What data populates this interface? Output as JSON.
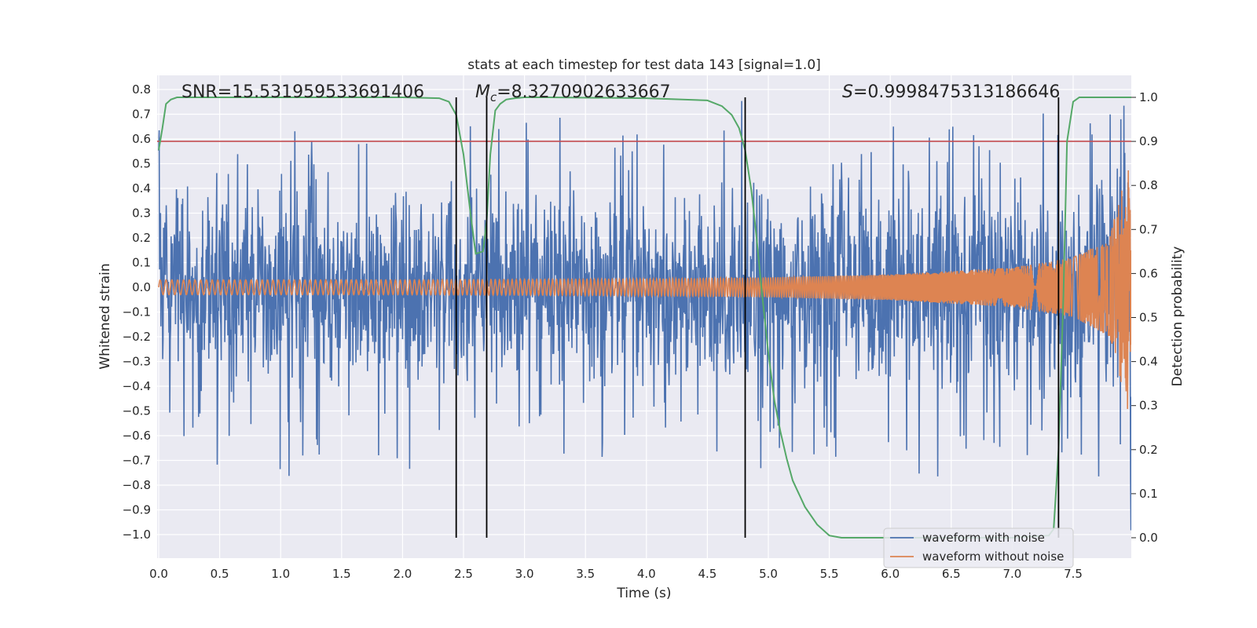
{
  "chart_data": {
    "type": "line",
    "title": "stats at each timestep for test data 143 [signal=1.0]",
    "xlabel": "Time (s)",
    "ylabel": "Whitened strain",
    "ylabel_right": "Detection probability",
    "xlim": [
      0.0,
      8.0
    ],
    "ylim": [
      -1.0,
      0.8
    ],
    "ylim_right": [
      0.0,
      1.0
    ],
    "x_ticks": [
      "0.0",
      "0.5",
      "1.0",
      "1.5",
      "2.0",
      "2.5",
      "3.0",
      "3.5",
      "4.0",
      "4.5",
      "5.0",
      "5.5",
      "6.0",
      "6.5",
      "7.0",
      "7.5"
    ],
    "y_ticks": [
      "0.8",
      "0.7",
      "0.6",
      "0.5",
      "0.4",
      "0.3",
      "0.2",
      "0.1",
      "0.0",
      "−0.1",
      "−0.2",
      "−0.3",
      "−0.4",
      "−0.5",
      "−0.6",
      "−0.7",
      "−0.8",
      "−0.9",
      "−1.0"
    ],
    "y_ticks_right": [
      "1.0",
      "0.9",
      "0.8",
      "0.7",
      "0.6",
      "0.5",
      "0.4",
      "0.3",
      "0.2",
      "0.1",
      "0.0"
    ],
    "annotations": {
      "snr_prefix": "SNR=",
      "snr_value": "15.531959533691406",
      "mc_symbol": "M",
      "mc_subscript": "c",
      "mc_value": "=8.3270902633667",
      "s_symbol": "S",
      "s_value": "=0.9998475313186646"
    },
    "threshold": {
      "value": 0.9,
      "axis": "right",
      "color": "#c44e52"
    },
    "vertical_lines": [
      2.44,
      2.69,
      4.81,
      7.38
    ],
    "series": [
      {
        "name": "waveform with noise",
        "color": "#4c72b0",
        "kind": "noise",
        "envelope": {
          "x": [
            0.0,
            2.0,
            4.0,
            6.0,
            7.0,
            7.5,
            7.8,
            8.0
          ],
          "max": [
            0.45,
            0.45,
            0.46,
            0.46,
            0.48,
            0.55,
            0.6,
            0.6
          ],
          "min": [
            -0.45,
            -0.45,
            -0.45,
            -0.46,
            -0.47,
            -0.5,
            -0.55,
            -0.6
          ]
        }
      },
      {
        "name": "waveform without noise",
        "color": "#dd8452",
        "kind": "chirp",
        "envelope": {
          "x": [
            0.0,
            2.0,
            4.0,
            5.0,
            6.0,
            7.0,
            7.5,
            7.8,
            7.95,
            8.0
          ],
          "amp": [
            0.03,
            0.03,
            0.034,
            0.04,
            0.052,
            0.08,
            0.12,
            0.2,
            0.5,
            0.0
          ]
        }
      },
      {
        "name": "",
        "color": "#55a868",
        "axis": "right",
        "x": [
          0.0,
          0.03,
          0.06,
          0.1,
          0.15,
          0.2,
          0.3,
          1.0,
          2.0,
          2.3,
          2.38,
          2.44,
          2.5,
          2.56,
          2.6,
          2.66,
          2.69,
          2.72,
          2.76,
          2.8,
          2.85,
          2.92,
          3.0,
          3.2,
          4.0,
          4.5,
          4.62,
          4.7,
          4.76,
          4.81,
          4.86,
          4.9,
          4.95,
          5.0,
          5.05,
          5.1,
          5.15,
          5.2,
          5.3,
          5.4,
          5.5,
          5.6,
          6.0,
          7.0,
          7.3,
          7.34,
          7.38,
          7.42,
          7.45,
          7.5,
          7.55,
          7.6,
          8.0
        ],
        "y": [
          0.88,
          0.93,
          0.985,
          0.995,
          1.0,
          1.0,
          1.0,
          1.0,
          1.0,
          0.998,
          0.99,
          0.96,
          0.87,
          0.73,
          0.645,
          0.65,
          0.72,
          0.87,
          0.97,
          0.985,
          0.995,
          0.998,
          1.0,
          1.0,
          0.998,
          0.993,
          0.98,
          0.96,
          0.93,
          0.88,
          0.79,
          0.69,
          0.55,
          0.42,
          0.31,
          0.24,
          0.18,
          0.13,
          0.07,
          0.03,
          0.005,
          0.0,
          0.0,
          0.0,
          0.005,
          0.02,
          0.2,
          0.55,
          0.9,
          0.99,
          1.0,
          1.0,
          1.0
        ]
      }
    ],
    "legend": {
      "location": "lower-right"
    },
    "grid": true,
    "colors": {
      "plot_bg": "#eaeaf2",
      "grid": "#ffffff",
      "vline": "#000000"
    }
  }
}
